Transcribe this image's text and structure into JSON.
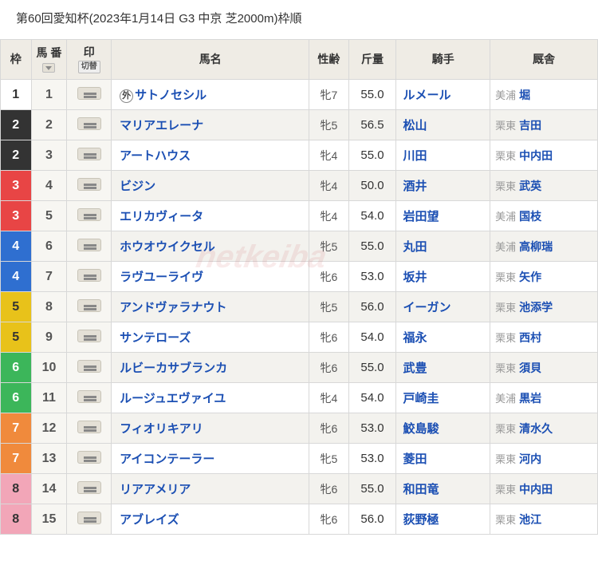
{
  "race": {
    "title": "第60回愛知杯(2023年1月14日 G3 中京 芝2000m)枠順"
  },
  "columns": {
    "waku": "枠",
    "umaban": "馬\n番",
    "mark": "印",
    "mark_sub": "切替",
    "name": "馬名",
    "sexage": "性齢",
    "weight": "斤量",
    "jockey": "騎手",
    "stable": "厩舎"
  },
  "waku_colors": {
    "1": {
      "bg": "#ffffff",
      "fg": "#333333"
    },
    "2": {
      "bg": "#333333",
      "fg": "#ffffff"
    },
    "3": {
      "bg": "#e84545",
      "fg": "#ffffff"
    },
    "4": {
      "bg": "#2f6fd0",
      "fg": "#ffffff"
    },
    "5": {
      "bg": "#e8c21a",
      "fg": "#333333"
    },
    "6": {
      "bg": "#3cb65a",
      "fg": "#ffffff"
    },
    "7": {
      "bg": "#f08a3c",
      "fg": "#ffffff"
    },
    "8": {
      "bg": "#f2a6b8",
      "fg": "#333333"
    }
  },
  "mark_pill": {
    "bg": "#e4e0d6",
    "border": "#c8c4b8"
  },
  "entries": [
    {
      "waku": "1",
      "num": "1",
      "foreign": true,
      "name": "サトノセシル",
      "sexage": "牝7",
      "weight": "55.0",
      "jockey": "ルメール",
      "stable_loc": "美浦",
      "stable": "堀"
    },
    {
      "waku": "2",
      "num": "2",
      "foreign": false,
      "name": "マリアエレーナ",
      "sexage": "牝5",
      "weight": "56.5",
      "jockey": "松山",
      "stable_loc": "栗東",
      "stable": "吉田"
    },
    {
      "waku": "2",
      "num": "3",
      "foreign": false,
      "name": "アートハウス",
      "sexage": "牝4",
      "weight": "55.0",
      "jockey": "川田",
      "stable_loc": "栗東",
      "stable": "中内田"
    },
    {
      "waku": "3",
      "num": "4",
      "foreign": false,
      "name": "ビジン",
      "sexage": "牝4",
      "weight": "50.0",
      "jockey": "酒井",
      "stable_loc": "栗東",
      "stable": "武英"
    },
    {
      "waku": "3",
      "num": "5",
      "foreign": false,
      "name": "エリカヴィータ",
      "sexage": "牝4",
      "weight": "54.0",
      "jockey": "岩田望",
      "stable_loc": "美浦",
      "stable": "国枝"
    },
    {
      "waku": "4",
      "num": "6",
      "foreign": false,
      "name": "ホウオウイクセル",
      "sexage": "牝5",
      "weight": "55.0",
      "jockey": "丸田",
      "stable_loc": "美浦",
      "stable": "高柳瑞"
    },
    {
      "waku": "4",
      "num": "7",
      "foreign": false,
      "name": "ラヴユーライヴ",
      "sexage": "牝6",
      "weight": "53.0",
      "jockey": "坂井",
      "stable_loc": "栗東",
      "stable": "矢作"
    },
    {
      "waku": "5",
      "num": "8",
      "foreign": false,
      "name": "アンドヴァラナウト",
      "sexage": "牝5",
      "weight": "56.0",
      "jockey": "イーガン",
      "stable_loc": "栗東",
      "stable": "池添学"
    },
    {
      "waku": "5",
      "num": "9",
      "foreign": false,
      "name": "サンテローズ",
      "sexage": "牝6",
      "weight": "54.0",
      "jockey": "福永",
      "stable_loc": "栗東",
      "stable": "西村"
    },
    {
      "waku": "6",
      "num": "10",
      "foreign": false,
      "name": "ルビーカサブランカ",
      "sexage": "牝6",
      "weight": "55.0",
      "jockey": "武豊",
      "stable_loc": "栗東",
      "stable": "須貝"
    },
    {
      "waku": "6",
      "num": "11",
      "foreign": false,
      "name": "ルージュエヴァイユ",
      "sexage": "牝4",
      "weight": "54.0",
      "jockey": "戸崎圭",
      "stable_loc": "美浦",
      "stable": "黒岩"
    },
    {
      "waku": "7",
      "num": "12",
      "foreign": false,
      "name": "フィオリキアリ",
      "sexage": "牝6",
      "weight": "53.0",
      "jockey": "鮫島駿",
      "stable_loc": "栗東",
      "stable": "清水久"
    },
    {
      "waku": "7",
      "num": "13",
      "foreign": false,
      "name": "アイコンテーラー",
      "sexage": "牝5",
      "weight": "53.0",
      "jockey": "菱田",
      "stable_loc": "栗東",
      "stable": "河内"
    },
    {
      "waku": "8",
      "num": "14",
      "foreign": false,
      "name": "リアアメリア",
      "sexage": "牝6",
      "weight": "55.0",
      "jockey": "和田竜",
      "stable_loc": "栗東",
      "stable": "中内田"
    },
    {
      "waku": "8",
      "num": "15",
      "foreign": false,
      "name": "アブレイズ",
      "sexage": "牝6",
      "weight": "56.0",
      "jockey": "荻野極",
      "stable_loc": "栗東",
      "stable": "池江"
    }
  ],
  "foreign_label": "外"
}
